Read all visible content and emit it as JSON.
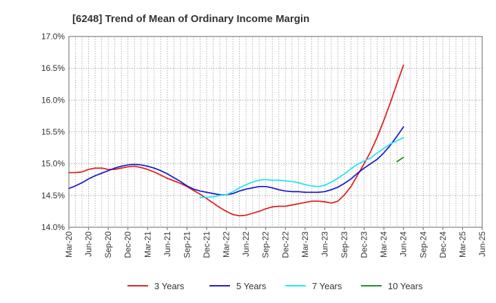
{
  "chart_data": {
    "type": "line",
    "title": "[6248]  Trend of Mean of Ordinary Income Margin",
    "xlabel": "",
    "ylabel": "",
    "ylim": [
      14.0,
      17.0
    ],
    "yticks": [
      14.0,
      14.5,
      15.0,
      15.5,
      16.0,
      16.5,
      17.0
    ],
    "ytick_labels": [
      "14.0%",
      "14.5%",
      "15.0%",
      "15.5%",
      "16.0%",
      "16.5%",
      "17.0%"
    ],
    "xtick_labels": [
      "Mar-20",
      "Jun-20",
      "Sep-20",
      "Dec-20",
      "Mar-21",
      "Jun-21",
      "Sep-21",
      "Dec-21",
      "Mar-22",
      "Jun-22",
      "Sep-22",
      "Dec-22",
      "Mar-23",
      "Jun-23",
      "Sep-23",
      "Dec-23",
      "Mar-24",
      "Jun-24",
      "Sep-24",
      "Dec-24",
      "Mar-25",
      "Jun-25"
    ],
    "grid": true,
    "legend_position": "bottom",
    "series": [
      {
        "name": "3 Years",
        "color": "#dd1f1f",
        "values": [
          14.86,
          14.86,
          14.87,
          14.91,
          14.93,
          14.93,
          14.91,
          14.91,
          14.93,
          14.95,
          14.96,
          14.94,
          14.91,
          14.87,
          14.82,
          14.77,
          14.73,
          14.69,
          14.64,
          14.58,
          14.52,
          14.45,
          14.38,
          14.31,
          14.25,
          14.2,
          14.18,
          14.19,
          14.22,
          14.25,
          14.29,
          14.32,
          14.33,
          14.33,
          14.35,
          14.37,
          14.39,
          14.41,
          14.41,
          14.4,
          14.38,
          14.41,
          14.51,
          14.64,
          14.82,
          15.0,
          15.19,
          15.42,
          15.68,
          15.96,
          16.26,
          16.55
        ]
      },
      {
        "name": "5 Years",
        "color": "#1c1ccc",
        "values": [
          14.61,
          14.65,
          14.7,
          14.76,
          14.81,
          14.85,
          14.89,
          14.93,
          14.96,
          14.98,
          14.99,
          14.98,
          14.96,
          14.93,
          14.89,
          14.84,
          14.78,
          14.72,
          14.65,
          14.6,
          14.57,
          14.55,
          14.53,
          14.51,
          14.51,
          14.53,
          14.57,
          14.6,
          14.62,
          14.64,
          14.64,
          14.62,
          14.59,
          14.57,
          14.56,
          14.56,
          14.55,
          14.55,
          14.55,
          14.56,
          14.59,
          14.63,
          14.69,
          14.76,
          14.85,
          14.93,
          15.0,
          15.07,
          15.17,
          15.29,
          15.43,
          15.58
        ]
      },
      {
        "name": "7 Years",
        "color": "#22e6ee",
        "values": [
          null,
          null,
          null,
          null,
          null,
          null,
          null,
          null,
          null,
          null,
          null,
          null,
          null,
          null,
          null,
          null,
          null,
          null,
          null,
          null,
          14.47,
          14.47,
          14.48,
          14.5,
          14.51,
          14.56,
          14.62,
          14.67,
          14.71,
          14.74,
          14.75,
          14.74,
          14.74,
          14.73,
          14.72,
          14.7,
          14.67,
          14.65,
          14.64,
          14.66,
          14.71,
          14.77,
          14.84,
          14.92,
          14.99,
          15.04,
          15.09,
          15.17,
          15.24,
          15.31,
          15.36,
          15.41
        ]
      },
      {
        "name": "10 Years",
        "color": "#218a21",
        "values": [
          null,
          null,
          null,
          null,
          null,
          null,
          null,
          null,
          null,
          null,
          null,
          null,
          null,
          null,
          null,
          null,
          null,
          null,
          null,
          null,
          null,
          null,
          null,
          null,
          null,
          null,
          null,
          null,
          null,
          null,
          null,
          null,
          null,
          null,
          null,
          null,
          null,
          null,
          null,
          null,
          null,
          null,
          null,
          null,
          null,
          null,
          null,
          null,
          null,
          null,
          15.03,
          15.1
        ]
      }
    ]
  }
}
